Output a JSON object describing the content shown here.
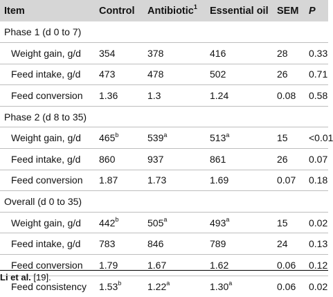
{
  "headers": {
    "item": "Item",
    "control": "Control",
    "antibiotic": "Antibiotic",
    "antibiotic_sup": "1",
    "essential_oil": "Essential oil",
    "sem": "SEM",
    "p": "P"
  },
  "sections": [
    {
      "label": "Phase 1 (d 0 to 7)",
      "rows": [
        {
          "item": "Weight gain, g/d",
          "control": "354",
          "control_sup": "",
          "antibiotic": "378",
          "antibiotic_sup": "",
          "oil": "416",
          "oil_sup": "",
          "sem": "28",
          "p": "0.33"
        },
        {
          "item": "Feed intake, g/d",
          "control": "473",
          "control_sup": "",
          "antibiotic": "478",
          "antibiotic_sup": "",
          "oil": "502",
          "oil_sup": "",
          "sem": "26",
          "p": "0.71"
        },
        {
          "item": "Feed conversion",
          "control": "1.36",
          "control_sup": "",
          "antibiotic": "1.3",
          "antibiotic_sup": "",
          "oil": "1.24",
          "oil_sup": "",
          "sem": "0.08",
          "p": "0.58"
        }
      ]
    },
    {
      "label": "Phase 2 (d 8 to 35)",
      "rows": [
        {
          "item": "Weight gain, g/d",
          "control": "465",
          "control_sup": "b",
          "antibiotic": "539",
          "antibiotic_sup": "a",
          "oil": "513",
          "oil_sup": "a",
          "sem": "15",
          "p": "<0.01"
        },
        {
          "item": "Feed intake, g/d",
          "control": "860",
          "control_sup": "",
          "antibiotic": "937",
          "antibiotic_sup": "",
          "oil": "861",
          "oil_sup": "",
          "sem": "26",
          "p": "0.07"
        },
        {
          "item": "Feed conversion",
          "control": "1.87",
          "control_sup": "",
          "antibiotic": "1.73",
          "antibiotic_sup": "",
          "oil": "1.69",
          "oil_sup": "",
          "sem": "0.07",
          "p": "0.18"
        }
      ]
    },
    {
      "label": "Overall (d 0 to 35)",
      "rows": [
        {
          "item": "Weight gain, g/d",
          "control": "442",
          "control_sup": "b",
          "antibiotic": "505",
          "antibiotic_sup": "a",
          "oil": "493",
          "oil_sup": "a",
          "sem": "15",
          "p": "0.02"
        },
        {
          "item": "Feed intake, g/d",
          "control": "783",
          "control_sup": "",
          "antibiotic": "846",
          "antibiotic_sup": "",
          "oil": "789",
          "oil_sup": "",
          "sem": "24",
          "p": "0.13"
        },
        {
          "item": "Feed conversion",
          "control": "1.79",
          "control_sup": "",
          "antibiotic": "1.67",
          "antibiotic_sup": "",
          "oil": "1.62",
          "oil_sup": "",
          "sem": "0.06",
          "p": "0.12"
        },
        {
          "item": "Feed consistency",
          "control": "1.53",
          "control_sup": "b",
          "antibiotic": "1.22",
          "antibiotic_sup": "a",
          "oil": "1.30",
          "oil_sup": "a",
          "sem": "0.06",
          "p": "0.02"
        }
      ]
    }
  ],
  "footnote": {
    "authors": "Li et al.",
    "ref": " [19]."
  }
}
